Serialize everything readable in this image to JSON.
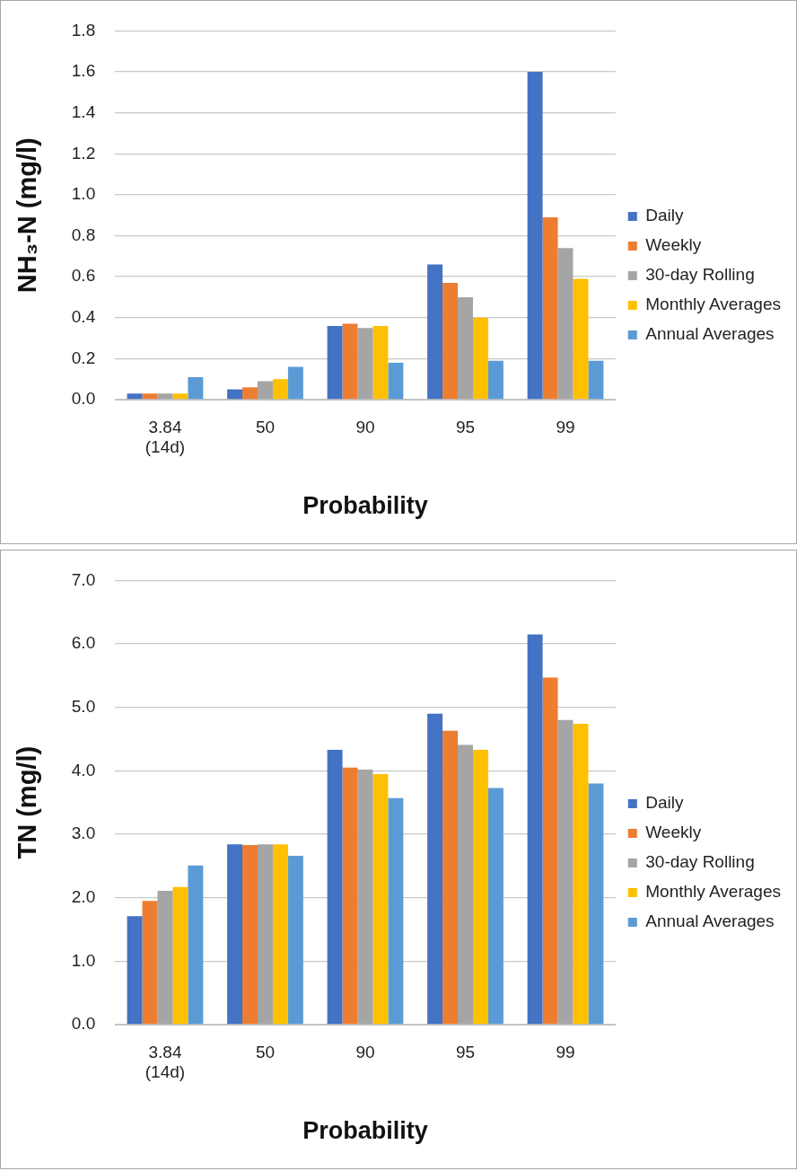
{
  "chart_data": [
    {
      "type": "bar",
      "xlabel": "Probability",
      "ylabel": "NH₃-N (mg/l)",
      "categories": [
        "3.84 (14d)",
        "50",
        "90",
        "95",
        "99"
      ],
      "series": [
        {
          "name": "Daily",
          "color": "#4472c4",
          "values": [
            0.03,
            0.05,
            0.36,
            0.66,
            1.6
          ]
        },
        {
          "name": "Weekly",
          "color": "#ed7d31",
          "values": [
            0.03,
            0.06,
            0.37,
            0.57,
            0.89
          ]
        },
        {
          "name": "30-day Rolling",
          "color": "#a5a5a5",
          "values": [
            0.03,
            0.09,
            0.35,
            0.5,
            0.74
          ]
        },
        {
          "name": "Monthly Averages",
          "color": "#ffc000",
          "values": [
            0.03,
            0.1,
            0.36,
            0.4,
            0.59
          ]
        },
        {
          "name": "Annual Averages",
          "color": "#5b9bd5",
          "values": [
            0.11,
            0.16,
            0.18,
            0.19,
            0.19
          ]
        }
      ],
      "ylim": [
        0,
        1.8
      ],
      "yticks": [
        {
          "value": 0,
          "label": "0.0"
        },
        {
          "value": 0.2,
          "label": "0.2"
        },
        {
          "value": 0.4,
          "label": "0.4"
        },
        {
          "value": 0.6,
          "label": "0.6"
        },
        {
          "value": 0.8,
          "label": "0.8"
        },
        {
          "value": 1,
          "label": "1.0"
        },
        {
          "value": 1.2,
          "label": "1.2"
        },
        {
          "value": 1.4,
          "label": "1.4"
        },
        {
          "value": 1.6,
          "label": "1.6"
        },
        {
          "value": 1.8,
          "label": "1.8"
        }
      ],
      "grid": "y",
      "legend": "right"
    },
    {
      "type": "bar",
      "xlabel": "Probability",
      "ylabel": "TN (mg/l)",
      "categories": [
        "3.84 (14d)",
        "50",
        "90",
        "95",
        "99"
      ],
      "series": [
        {
          "name": "Daily",
          "color": "#4472c4",
          "values": [
            1.71,
            2.84,
            4.33,
            4.9,
            6.15
          ]
        },
        {
          "name": "Weekly",
          "color": "#ed7d31",
          "values": [
            1.95,
            2.83,
            4.05,
            4.63,
            5.47
          ]
        },
        {
          "name": "30-day Rolling",
          "color": "#a5a5a5",
          "values": [
            2.11,
            2.84,
            4.02,
            4.41,
            4.8
          ]
        },
        {
          "name": "Monthly Averages",
          "color": "#ffc000",
          "values": [
            2.17,
            2.84,
            3.95,
            4.33,
            4.74
          ]
        },
        {
          "name": "Annual Averages",
          "color": "#5b9bd5",
          "values": [
            2.51,
            2.66,
            3.57,
            3.73,
            3.8
          ]
        }
      ],
      "ylim": [
        0,
        7
      ],
      "yticks": [
        {
          "value": 0,
          "label": "0.0"
        },
        {
          "value": 1,
          "label": "1.0"
        },
        {
          "value": 2,
          "label": "2.0"
        },
        {
          "value": 3,
          "label": "3.0"
        },
        {
          "value": 4,
          "label": "4.0"
        },
        {
          "value": 5,
          "label": "5.0"
        },
        {
          "value": 6,
          "label": "6.0"
        },
        {
          "value": 7,
          "label": "7.0"
        }
      ],
      "grid": "y",
      "legend": "right"
    }
  ]
}
